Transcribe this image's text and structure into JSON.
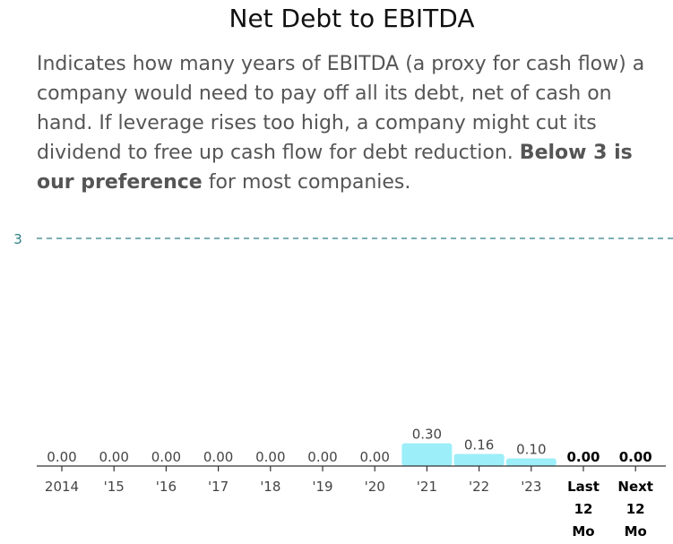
{
  "title": "Net Debt to EBITDA",
  "description": {
    "text": "Indicates how many years of EBITDA (a proxy for cash flow) a company would need to pay off all its debt, net of cash on hand. If leverage rises too high, a company might cut its dividend to free up cash flow for debt reduction. ",
    "bold": "Below 3 is our preference",
    "tail": " for most companies."
  },
  "colors": {
    "bar": "#9ceef8",
    "reference_line": "#2f7f86",
    "axis": "#333333",
    "label": "#444444",
    "bold_label": "#000000"
  },
  "chart_data": {
    "type": "bar",
    "categories": [
      "2014",
      "'15",
      "'16",
      "'17",
      "'18",
      "'19",
      "'20",
      "'21",
      "'22",
      "'23",
      "Last\n12\nMo",
      "Next\n12\nMo"
    ],
    "values": [
      0.0,
      0.0,
      0.0,
      0.0,
      0.0,
      0.0,
      0.0,
      0.3,
      0.16,
      0.1,
      0.0,
      0.0
    ],
    "value_labels": [
      "0.00",
      "0.00",
      "0.00",
      "0.00",
      "0.00",
      "0.00",
      "0.00",
      "0.30",
      "0.16",
      "0.10",
      "0.00",
      "0.00"
    ],
    "bold_categories": [
      "Last\n12\nMo",
      "Next\n12\nMo"
    ],
    "reference_line": {
      "value": 3,
      "label": "3",
      "style": "dashed"
    },
    "ylim": [
      0,
      3.3
    ],
    "grid": false,
    "legend": "none"
  }
}
